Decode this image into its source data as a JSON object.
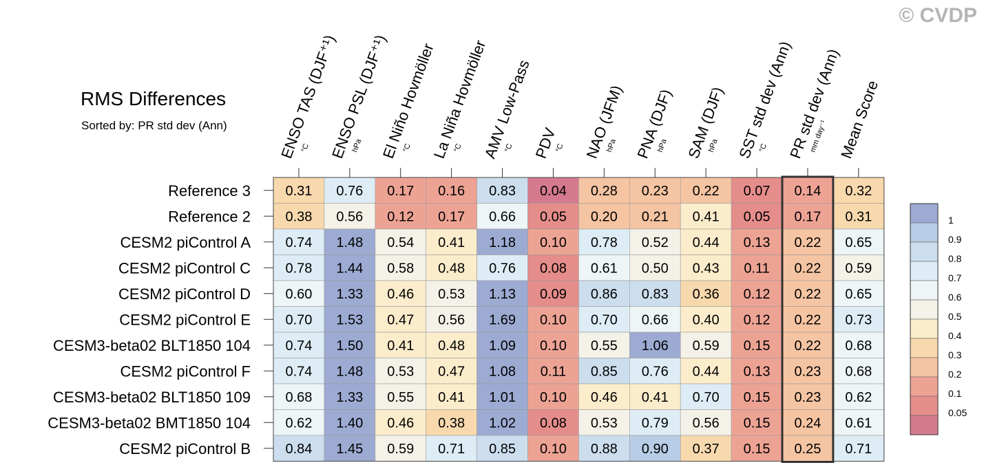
{
  "watermark": "© CVDP",
  "chart_data": {
    "type": "heatmap",
    "title": "RMS Differences",
    "subtitle": "Sorted by: PR std dev (Ann)",
    "columns": [
      {
        "label": "ENSO TAS (DJF⁺¹)",
        "unit": "°C"
      },
      {
        "label": "ENSO PSL (DJF⁺¹)",
        "unit": "hPa"
      },
      {
        "label": "El Niño Hovmöller",
        "unit": "°C"
      },
      {
        "label": "La Niña Hovmöller",
        "unit": "°C"
      },
      {
        "label": "AMV Low-Pass",
        "unit": "°C"
      },
      {
        "label": "PDV",
        "unit": "°C"
      },
      {
        "label": "NAO (JFM)",
        "unit": "hPa"
      },
      {
        "label": "PNA (DJF)",
        "unit": "hPa"
      },
      {
        "label": "SAM (DJF)",
        "unit": "hPa"
      },
      {
        "label": "SST std dev (Ann)",
        "unit": "°C"
      },
      {
        "label": "PR std dev (Ann)",
        "unit": "mm day⁻¹"
      },
      {
        "label": "Mean Score",
        "unit": ""
      }
    ],
    "rows": [
      {
        "label": "Reference 3",
        "values": [
          "0.31",
          "0.76",
          "0.17",
          "0.16",
          "0.83",
          "0.04",
          "0.28",
          "0.23",
          "0.22",
          "0.07",
          "0.14",
          "0.32"
        ]
      },
      {
        "label": "Reference 2",
        "values": [
          "0.38",
          "0.56",
          "0.12",
          "0.17",
          "0.66",
          "0.05",
          "0.20",
          "0.21",
          "0.41",
          "0.05",
          "0.17",
          "0.31"
        ]
      },
      {
        "label": "CESM2 piControl A",
        "values": [
          "0.74",
          "1.48",
          "0.54",
          "0.41",
          "1.18",
          "0.10",
          "0.78",
          "0.52",
          "0.44",
          "0.13",
          "0.22",
          "0.65"
        ]
      },
      {
        "label": "CESM2 piControl C",
        "values": [
          "0.78",
          "1.44",
          "0.58",
          "0.48",
          "0.76",
          "0.08",
          "0.61",
          "0.50",
          "0.43",
          "0.11",
          "0.22",
          "0.59"
        ]
      },
      {
        "label": "CESM2 piControl D",
        "values": [
          "0.60",
          "1.33",
          "0.46",
          "0.53",
          "1.13",
          "0.09",
          "0.86",
          "0.83",
          "0.36",
          "0.12",
          "0.22",
          "0.65"
        ]
      },
      {
        "label": "CESM2 piControl E",
        "values": [
          "0.70",
          "1.53",
          "0.47",
          "0.56",
          "1.69",
          "0.10",
          "0.70",
          "0.66",
          "0.40",
          "0.12",
          "0.22",
          "0.73"
        ]
      },
      {
        "label": "CESM3-beta02 BLT1850 104",
        "values": [
          "0.74",
          "1.50",
          "0.41",
          "0.48",
          "1.09",
          "0.10",
          "0.55",
          "1.06",
          "0.59",
          "0.15",
          "0.22",
          "0.68"
        ]
      },
      {
        "label": "CESM2 piControl F",
        "values": [
          "0.74",
          "1.48",
          "0.53",
          "0.47",
          "1.08",
          "0.11",
          "0.85",
          "0.76",
          "0.44",
          "0.13",
          "0.23",
          "0.68"
        ]
      },
      {
        "label": "CESM3-beta02 BLT1850 109",
        "values": [
          "0.68",
          "1.33",
          "0.55",
          "0.41",
          "1.01",
          "0.10",
          "0.46",
          "0.41",
          "0.70",
          "0.15",
          "0.23",
          "0.62"
        ]
      },
      {
        "label": "CESM3-beta02 BMT1850 104",
        "values": [
          "0.62",
          "1.40",
          "0.46",
          "0.38",
          "1.02",
          "0.08",
          "0.53",
          "0.79",
          "0.56",
          "0.15",
          "0.24",
          "0.61"
        ]
      },
      {
        "label": "CESM2 piControl B",
        "values": [
          "0.84",
          "1.45",
          "0.59",
          "0.71",
          "0.85",
          "0.10",
          "0.88",
          "0.90",
          "0.37",
          "0.15",
          "0.25",
          "0.71"
        ]
      }
    ],
    "highlight_column": "PR std dev (Ann)",
    "colorbar": {
      "labels": [
        "1",
        "0.9",
        "0.8",
        "0.7",
        "0.6",
        "0.5",
        "0.4",
        "0.3",
        "0.2",
        "0.1",
        "0.05"
      ],
      "colors": [
        "#9dabd3",
        "#b8cde6",
        "#ccdeee",
        "#deedf5",
        "#edf5f7",
        "#f4f2e8",
        "#fbeccb",
        "#f8d9ad",
        "#f5c4a2",
        "#eda394",
        "#e58d8b",
        "#d57a8e"
      ]
    }
  }
}
